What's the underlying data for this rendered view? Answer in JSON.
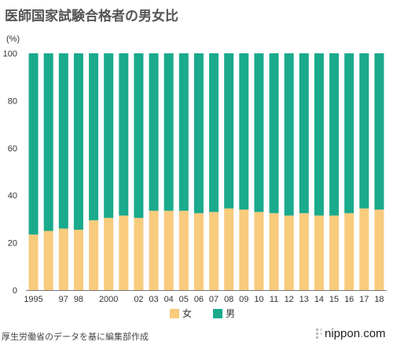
{
  "chart_data": {
    "type": "bar",
    "stacked": true,
    "title": "医師国家試験合格者の男女比",
    "yunit": "(%)",
    "ylim": [
      0,
      100
    ],
    "yticks": [
      0,
      20,
      40,
      60,
      80,
      100
    ],
    "grid": false,
    "legend_position": "bottom-center",
    "categories": [
      "1995",
      "1996",
      "1997",
      "1998",
      "1999",
      "2000",
      "2001",
      "2002",
      "2003",
      "2004",
      "2005",
      "2006",
      "2007",
      "2008",
      "2009",
      "2010",
      "2011",
      "2012",
      "2013",
      "2014",
      "2015",
      "2016",
      "2017",
      "2018"
    ],
    "tick_labels": [
      "1995",
      "",
      "97",
      "98",
      "",
      "2000",
      "",
      "02",
      "03",
      "04",
      "05",
      "06",
      "07",
      "08",
      "09",
      "10",
      "11",
      "12",
      "13",
      "14",
      "15",
      "16",
      "17",
      "18"
    ],
    "series": [
      {
        "name": "女",
        "color": "#f8cb7d",
        "values": [
          23.5,
          25.0,
          26.0,
          25.5,
          29.5,
          30.5,
          31.5,
          30.5,
          33.5,
          33.5,
          33.5,
          32.5,
          33.0,
          34.5,
          34.0,
          33.0,
          32.5,
          31.5,
          32.5,
          31.5,
          31.5,
          32.5,
          34.5,
          34.0
        ]
      },
      {
        "name": "男",
        "color": "#1aaa8c",
        "values": [
          76.5,
          75.0,
          74.0,
          74.5,
          70.5,
          69.5,
          68.5,
          69.5,
          66.5,
          66.5,
          66.5,
          67.5,
          67.0,
          65.5,
          66.0,
          67.0,
          67.5,
          68.5,
          67.5,
          68.5,
          68.5,
          67.5,
          65.5,
          66.0
        ]
      }
    ]
  },
  "source_text": "厚生労働省のデータを基に編集部作成",
  "logo": {
    "name": "nippon",
    "dot": ".",
    "tld": "com",
    "mark_icon": "nippon-logo-icon"
  }
}
